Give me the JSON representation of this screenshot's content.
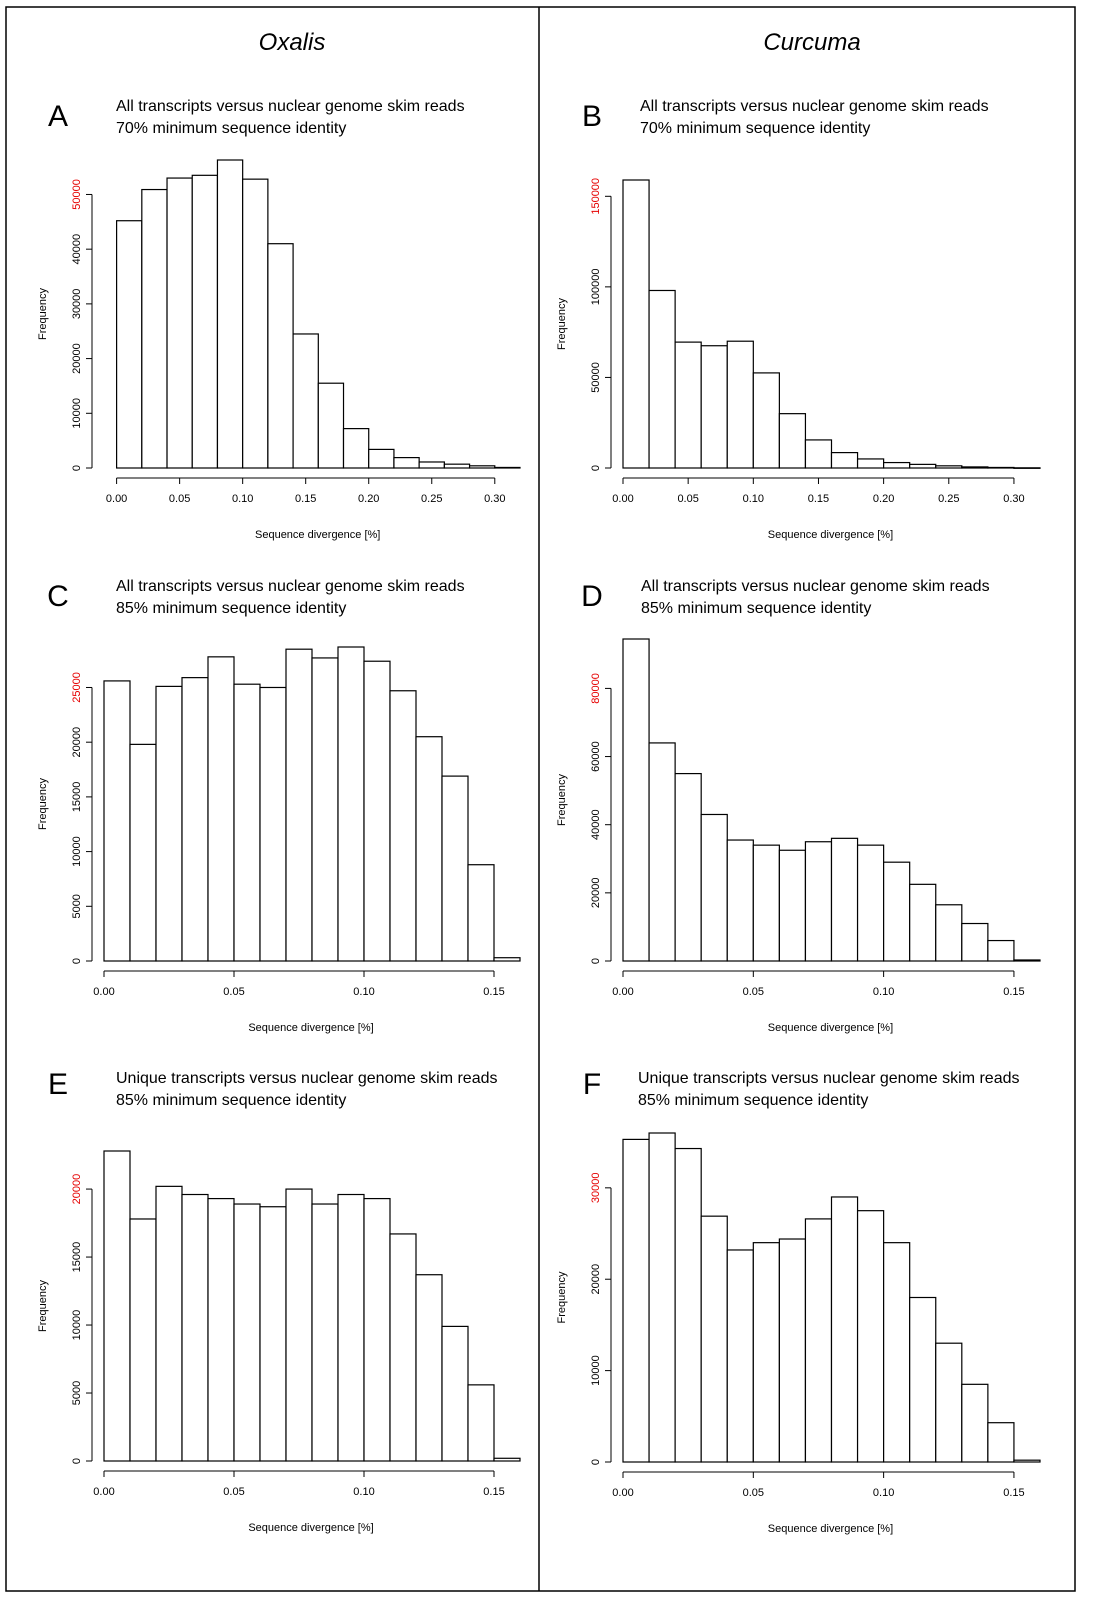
{
  "columns": [
    "Oxalis",
    "Curcuma"
  ],
  "highlight_color": "#e60000",
  "chart_data": [
    {
      "type": "bar",
      "panel": "A",
      "title_lines": [
        "All transcripts versus nuclear genome skim reads",
        "70% minimum sequence identity"
      ],
      "xlabel": "Sequence divergence [%]",
      "ylabel": "Frequency",
      "bin_width": 0.02,
      "x": [
        0.0,
        0.02,
        0.04,
        0.06,
        0.08,
        0.1,
        0.12,
        0.14,
        0.16,
        0.18,
        0.2,
        0.22,
        0.24,
        0.26,
        0.28,
        0.3
      ],
      "values": [
        45200,
        50900,
        53000,
        53500,
        56300,
        52800,
        41000,
        24500,
        15500,
        7200,
        3400,
        1900,
        1100,
        700,
        400,
        100
      ],
      "xlim": [
        -0.01,
        0.32
      ],
      "ylim": [
        0,
        56300
      ],
      "xticks": [
        "0.00",
        "0.05",
        "0.10",
        "0.15",
        "0.20",
        "0.25",
        "0.30"
      ],
      "yticks": [
        "0",
        "10000",
        "20000",
        "30000",
        "40000",
        "50000"
      ],
      "highlight_ytick": "50000"
    },
    {
      "type": "bar",
      "panel": "B",
      "title_lines": [
        "All transcripts versus nuclear genome skim reads",
        "70% minimum sequence identity"
      ],
      "xlabel": "Sequence divergence [%]",
      "ylabel": "Frequency",
      "bin_width": 0.02,
      "x": [
        0.0,
        0.02,
        0.04,
        0.06,
        0.08,
        0.1,
        0.12,
        0.14,
        0.16,
        0.18,
        0.2,
        0.22,
        0.24,
        0.26,
        0.28,
        0.3
      ],
      "values": [
        159000,
        98000,
        69500,
        67500,
        70000,
        52500,
        30000,
        15500,
        8500,
        5000,
        3000,
        2000,
        1200,
        600,
        300,
        100
      ],
      "xlim": [
        0.0,
        0.32
      ],
      "ylim": [
        0,
        159000
      ],
      "xticks": [
        "0.00",
        "0.05",
        "0.10",
        "0.15",
        "0.20",
        "0.25",
        "0.30"
      ],
      "yticks": [
        "0",
        "50000",
        "100000",
        "150000"
      ],
      "highlight_ytick": "150000"
    },
    {
      "type": "bar",
      "panel": "C",
      "title_lines": [
        "All transcripts versus nuclear genome skim reads",
        "85% minimum sequence identity"
      ],
      "xlabel": "Sequence divergence [%]",
      "ylabel": "Frequency",
      "bin_width": 0.01,
      "x": [
        0.0,
        0.01,
        0.02,
        0.03,
        0.04,
        0.05,
        0.06,
        0.07,
        0.08,
        0.09,
        0.1,
        0.11,
        0.12,
        0.13,
        0.14,
        0.15
      ],
      "values": [
        25600,
        19800,
        25100,
        25900,
        27800,
        25300,
        25000,
        28500,
        27700,
        28700,
        27400,
        24700,
        20500,
        16900,
        8800,
        300
      ],
      "xlim": [
        0.0,
        0.16
      ],
      "ylim": [
        0,
        28700
      ],
      "xticks": [
        "0.00",
        "0.05",
        "0.10",
        "0.15"
      ],
      "yticks": [
        "0",
        "5000",
        "10000",
        "15000",
        "20000",
        "25000"
      ],
      "highlight_ytick": "25000"
    },
    {
      "type": "bar",
      "panel": "D",
      "title_lines": [
        "All transcripts versus nuclear genome skim reads",
        "85% minimum sequence identity"
      ],
      "xlabel": "Sequence divergence [%]",
      "ylabel": "Frequency",
      "bin_width": 0.01,
      "x": [
        0.0,
        0.01,
        0.02,
        0.03,
        0.04,
        0.05,
        0.06,
        0.07,
        0.08,
        0.09,
        0.1,
        0.11,
        0.12,
        0.13,
        0.14,
        0.15
      ],
      "values": [
        94500,
        64000,
        55000,
        43000,
        35500,
        34000,
        32500,
        35000,
        36000,
        34000,
        29000,
        22500,
        16500,
        11000,
        6000,
        300
      ],
      "xlim": [
        0.0,
        0.16
      ],
      "ylim": [
        0,
        94500
      ],
      "xticks": [
        "0.00",
        "0.05",
        "0.10",
        "0.15"
      ],
      "yticks": [
        "0",
        "20000",
        "40000",
        "60000",
        "80000"
      ],
      "highlight_ytick": "80000"
    },
    {
      "type": "bar",
      "panel": "E",
      "title_lines": [
        "Unique transcripts versus nuclear genome skim reads",
        "85% minimum sequence identity"
      ],
      "xlabel": "Sequence divergence [%]",
      "ylabel": "Frequency",
      "bin_width": 0.01,
      "x": [
        0.0,
        0.01,
        0.02,
        0.03,
        0.04,
        0.05,
        0.06,
        0.07,
        0.08,
        0.09,
        0.1,
        0.11,
        0.12,
        0.13,
        0.14,
        0.15
      ],
      "values": [
        22800,
        17800,
        20200,
        19600,
        19300,
        18900,
        18700,
        20000,
        18900,
        19600,
        19300,
        16700,
        13700,
        9900,
        5600,
        200
      ],
      "xlim": [
        0.0,
        0.16
      ],
      "ylim": [
        0,
        22800
      ],
      "xticks": [
        "0.00",
        "0.05",
        "0.10",
        "0.15"
      ],
      "yticks": [
        "0",
        "5000",
        "10000",
        "15000",
        "20000"
      ],
      "highlight_ytick": "20000"
    },
    {
      "type": "bar",
      "panel": "F",
      "title_lines": [
        "Unique transcripts versus nuclear genome skim reads",
        "85% minimum sequence identity"
      ],
      "xlabel": "Sequence divergence [%]",
      "ylabel": "Frequency",
      "bin_width": 0.01,
      "x": [
        0.0,
        0.01,
        0.02,
        0.03,
        0.04,
        0.05,
        0.06,
        0.07,
        0.08,
        0.09,
        0.1,
        0.11,
        0.12,
        0.13,
        0.14,
        0.15
      ],
      "values": [
        35300,
        36000,
        34300,
        26900,
        23200,
        24000,
        24400,
        26600,
        29000,
        27500,
        24000,
        18000,
        13000,
        8500,
        4300,
        200
      ],
      "xlim": [
        0.0,
        0.16
      ],
      "ylim": [
        0,
        36000
      ],
      "xticks": [
        "0.00",
        "0.05",
        "0.10",
        "0.15"
      ],
      "yticks": [
        "0",
        "10000",
        "20000",
        "30000"
      ],
      "highlight_ytick": "30000"
    }
  ]
}
